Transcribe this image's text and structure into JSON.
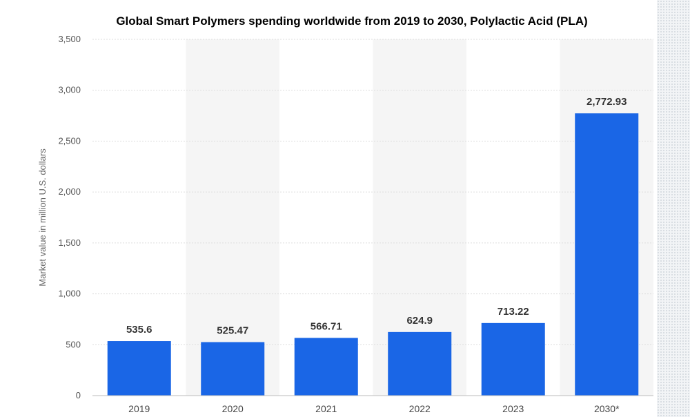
{
  "chart_data": {
    "type": "bar",
    "title": "Global Smart Polymers spending worldwide from 2019 to 2030, Polylactic Acid (PLA)",
    "xlabel": "",
    "ylabel": "Market value in million U.S. dollars",
    "categories": [
      "2019",
      "2020",
      "2021",
      "2022",
      "2023",
      "2030*"
    ],
    "values": [
      535.6,
      525.47,
      566.71,
      624.9,
      713.22,
      2772.93
    ],
    "value_labels": [
      "535.6",
      "525.47",
      "566.71",
      "624.9",
      "713.22",
      "2,772.93"
    ],
    "ylim": [
      0,
      3500
    ],
    "yticks": [
      0,
      500,
      1000,
      1500,
      2000,
      2500,
      3000,
      3500
    ],
    "ytick_labels": [
      "0",
      "500",
      "1,000",
      "1,500",
      "2,000",
      "2,500",
      "3,000",
      "3,500"
    ],
    "grid": true,
    "legend": "none",
    "bar_color": "#1a66e6",
    "band_color": "#f5f5f5",
    "grid_color": "#dddddd"
  }
}
